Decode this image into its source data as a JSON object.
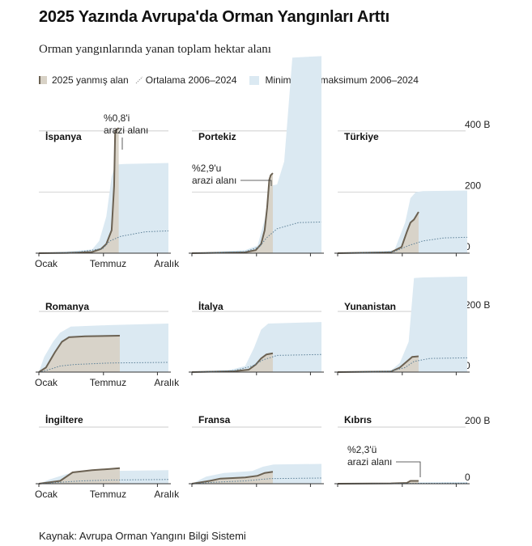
{
  "title": "2025 Yazında Avrupa'da Orman Yangınları Arttı",
  "subtitle": "Orman yangınlarında yanan toplam hektar alanı",
  "legend": {
    "current": "2025 yanmış alan",
    "average": "Ortalama 2006–2024",
    "range": "Minimum ve maksimum 2006–2024"
  },
  "source": "Kaynak: Avrupa Orman Yangını Bilgi Sistemi",
  "colors": {
    "current_fill": "#d8d2c6",
    "current_line": "#6b6152",
    "range_fill": "#dbe9f2",
    "average_line": "#5b7f96",
    "gridline": "#bdbdbd",
    "baseline": "#333333"
  },
  "x_ticks": [
    "Ocak",
    "Temmuz",
    "Aralık"
  ],
  "chart_data": [
    {
      "type": "area",
      "row": 0,
      "col": 0,
      "country": "İspanya",
      "annotation": [
        "%0,8'i",
        "arazi alanı"
      ],
      "current_day": 225,
      "y_axis": {
        "unit_labels": [
          "400 B",
          "200",
          "0"
        ],
        "ticks": [
          400,
          200,
          0
        ],
        "ylim": [
          0,
          450
        ]
      },
      "current": [
        [
          0,
          0
        ],
        [
          80,
          1
        ],
        [
          150,
          4
        ],
        [
          175,
          14
        ],
        [
          190,
          30
        ],
        [
          205,
          75
        ],
        [
          212,
          220
        ],
        [
          215,
          400
        ],
        [
          225,
          410
        ]
      ],
      "average": [
        [
          0,
          0
        ],
        [
          100,
          2
        ],
        [
          180,
          15
        ],
        [
          200,
          40
        ],
        [
          230,
          55
        ],
        [
          300,
          70
        ],
        [
          365,
          73
        ]
      ],
      "range_max": [
        [
          0,
          0
        ],
        [
          30,
          2
        ],
        [
          150,
          12
        ],
        [
          170,
          40
        ],
        [
          190,
          120
        ],
        [
          205,
          250
        ],
        [
          215,
          290
        ],
        [
          240,
          292
        ],
        [
          365,
          295
        ]
      ]
    },
    {
      "type": "area",
      "row": 0,
      "col": 1,
      "country": "Portekiz",
      "annotation": [
        "%2,9'u",
        "arazi alanı"
      ],
      "current_day": 228,
      "y_axis": {
        "unit_labels": [
          "400 B",
          "200",
          "0"
        ],
        "ticks": [
          400,
          200,
          0
        ],
        "ylim": [
          0,
          450
        ]
      },
      "current": [
        [
          0,
          0
        ],
        [
          150,
          3
        ],
        [
          180,
          10
        ],
        [
          195,
          30
        ],
        [
          205,
          75
        ],
        [
          212,
          150
        ],
        [
          218,
          240
        ],
        [
          222,
          255
        ],
        [
          228,
          262
        ]
      ],
      "average": [
        [
          0,
          0
        ],
        [
          150,
          5
        ],
        [
          190,
          20
        ],
        [
          210,
          50
        ],
        [
          240,
          80
        ],
        [
          300,
          100
        ],
        [
          365,
          102
        ]
      ],
      "range_max": [
        [
          0,
          0
        ],
        [
          30,
          2
        ],
        [
          150,
          10
        ],
        [
          185,
          25
        ],
        [
          205,
          110
        ],
        [
          220,
          220
        ],
        [
          240,
          225
        ],
        [
          260,
          300
        ],
        [
          283,
          640
        ],
        [
          365,
          645
        ]
      ]
    },
    {
      "type": "area",
      "row": 0,
      "col": 2,
      "country": "Türkiye",
      "current_day": 228,
      "y_axis": {
        "unit_labels": [
          "400 B",
          "200",
          "0"
        ],
        "ticks": [
          400,
          200,
          0
        ],
        "ylim": [
          0,
          450
        ]
      },
      "current": [
        [
          0,
          0
        ],
        [
          150,
          3
        ],
        [
          180,
          20
        ],
        [
          195,
          70
        ],
        [
          205,
          100
        ],
        [
          215,
          110
        ],
        [
          228,
          135
        ]
      ],
      "average": [
        [
          0,
          0
        ],
        [
          160,
          5
        ],
        [
          200,
          25
        ],
        [
          240,
          40
        ],
        [
          300,
          50
        ],
        [
          365,
          52
        ]
      ],
      "range_max": [
        [
          0,
          0
        ],
        [
          100,
          2
        ],
        [
          160,
          10
        ],
        [
          190,
          100
        ],
        [
          205,
          180
        ],
        [
          220,
          200
        ],
        [
          240,
          203
        ],
        [
          365,
          205
        ]
      ]
    },
    {
      "type": "area",
      "row": 1,
      "col": 0,
      "country": "Romanya",
      "current_day": 228,
      "y_axis": {
        "unit_labels": [
          "200 B",
          "0"
        ],
        "ticks": [
          200,
          0
        ],
        "ylim": [
          0,
          280
        ]
      },
      "current": [
        [
          0,
          0
        ],
        [
          20,
          15
        ],
        [
          45,
          65
        ],
        [
          65,
          100
        ],
        [
          85,
          115
        ],
        [
          130,
          118
        ],
        [
          228,
          120
        ]
      ],
      "average": [
        [
          0,
          0
        ],
        [
          20,
          5
        ],
        [
          60,
          20
        ],
        [
          100,
          25
        ],
        [
          200,
          30
        ],
        [
          365,
          32
        ]
      ],
      "range_max": [
        [
          0,
          0
        ],
        [
          15,
          50
        ],
        [
          40,
          100
        ],
        [
          60,
          130
        ],
        [
          90,
          150
        ],
        [
          200,
          155
        ],
        [
          365,
          160
        ]
      ]
    },
    {
      "type": "area",
      "row": 1,
      "col": 1,
      "country": "İtalya",
      "current_day": 228,
      "y_axis": {
        "unit_labels": [
          "200 B",
          "0"
        ],
        "ticks": [
          200,
          0
        ],
        "ylim": [
          0,
          280
        ]
      },
      "current": [
        [
          0,
          0
        ],
        [
          120,
          3
        ],
        [
          160,
          8
        ],
        [
          180,
          25
        ],
        [
          195,
          45
        ],
        [
          210,
          58
        ],
        [
          228,
          62
        ]
      ],
      "average": [
        [
          0,
          0
        ],
        [
          120,
          5
        ],
        [
          170,
          20
        ],
        [
          200,
          40
        ],
        [
          240,
          55
        ],
        [
          365,
          58
        ]
      ],
      "range_max": [
        [
          0,
          0
        ],
        [
          100,
          5
        ],
        [
          150,
          20
        ],
        [
          175,
          80
        ],
        [
          195,
          140
        ],
        [
          215,
          160
        ],
        [
          365,
          165
        ]
      ]
    },
    {
      "type": "area",
      "row": 1,
      "col": 2,
      "country": "Yunanistan",
      "current_day": 228,
      "y_axis": {
        "unit_labels": [
          "200 B",
          "0"
        ],
        "ticks": [
          200,
          0
        ],
        "ylim": [
          0,
          280
        ]
      },
      "current": [
        [
          0,
          0
        ],
        [
          150,
          2
        ],
        [
          175,
          15
        ],
        [
          190,
          30
        ],
        [
          210,
          50
        ],
        [
          228,
          52
        ]
      ],
      "average": [
        [
          0,
          0
        ],
        [
          150,
          3
        ],
        [
          190,
          15
        ],
        [
          215,
          35
        ],
        [
          260,
          45
        ],
        [
          365,
          47
        ]
      ],
      "range_max": [
        [
          0,
          0
        ],
        [
          150,
          5
        ],
        [
          175,
          30
        ],
        [
          200,
          100
        ],
        [
          215,
          310
        ],
        [
          240,
          312
        ],
        [
          365,
          315
        ]
      ]
    },
    {
      "type": "area",
      "row": 2,
      "col": 0,
      "country": "İngiltere",
      "current_day": 228,
      "y_axis": {
        "unit_labels": [
          "200 B",
          "0"
        ],
        "ticks": [
          200,
          0
        ],
        "ylim": [
          0,
          280
        ]
      },
      "current": [
        [
          0,
          0
        ],
        [
          60,
          10
        ],
        [
          95,
          40
        ],
        [
          150,
          48
        ],
        [
          200,
          52
        ],
        [
          228,
          55
        ]
      ],
      "average": [
        [
          0,
          0
        ],
        [
          60,
          5
        ],
        [
          120,
          10
        ],
        [
          200,
          13
        ],
        [
          365,
          15
        ]
      ],
      "range_max": [
        [
          0,
          0
        ],
        [
          30,
          15
        ],
        [
          80,
          35
        ],
        [
          120,
          42
        ],
        [
          200,
          45
        ],
        [
          365,
          48
        ]
      ]
    },
    {
      "type": "area",
      "row": 2,
      "col": 1,
      "country": "Fransa",
      "current_day": 228,
      "y_axis": {
        "unit_labels": [
          "200 B",
          "0"
        ],
        "ticks": [
          200,
          0
        ],
        "ylim": [
          0,
          280
        ]
      },
      "current": [
        [
          0,
          0
        ],
        [
          50,
          10
        ],
        [
          80,
          18
        ],
        [
          150,
          22
        ],
        [
          185,
          28
        ],
        [
          205,
          38
        ],
        [
          228,
          42
        ]
      ],
      "average": [
        [
          0,
          0
        ],
        [
          60,
          5
        ],
        [
          150,
          10
        ],
        [
          220,
          18
        ],
        [
          365,
          20
        ]
      ],
      "range_max": [
        [
          0,
          0
        ],
        [
          40,
          25
        ],
        [
          90,
          38
        ],
        [
          170,
          45
        ],
        [
          200,
          60
        ],
        [
          230,
          68
        ],
        [
          365,
          70
        ]
      ]
    },
    {
      "type": "area",
      "row": 2,
      "col": 2,
      "country": "Kıbrıs",
      "annotation": [
        "%2,3'ü",
        "arazi alanı"
      ],
      "current_day": 228,
      "y_axis": {
        "unit_labels": [
          "200 B",
          "0"
        ],
        "ticks": [
          200,
          0
        ],
        "ylim": [
          0,
          280
        ]
      },
      "current": [
        [
          0,
          0
        ],
        [
          150,
          1
        ],
        [
          195,
          3
        ],
        [
          205,
          10
        ],
        [
          228,
          10
        ]
      ],
      "average": [
        [
          0,
          0
        ],
        [
          365,
          2
        ]
      ],
      "range_max": [
        [
          0,
          0
        ],
        [
          200,
          3
        ],
        [
          230,
          5
        ],
        [
          365,
          6
        ]
      ]
    }
  ]
}
